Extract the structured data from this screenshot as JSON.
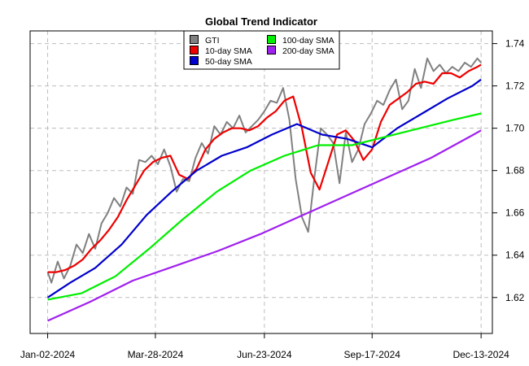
{
  "chart_data": {
    "type": "line",
    "title": "Global Trend Indicator",
    "xlabel": "",
    "ylabel": "",
    "x_ticks": [
      "Jan-02-2024",
      "Mar-28-2024",
      "Jun-23-2024",
      "Sep-17-2024",
      "Dec-13-2024"
    ],
    "y_ticks": [
      "1.62",
      "1.64",
      "1.66",
      "1.68",
      "1.70",
      "1.72",
      "1.74"
    ],
    "ylim": [
      1.603,
      1.746
    ],
    "xlim": [
      "2023-12-19",
      "2024-12-22"
    ],
    "grid": true,
    "legend_position": "top",
    "series": [
      {
        "name": "GTI",
        "color": "#808080",
        "x": [
          "2024-01-02",
          "2024-01-05",
          "2024-01-10",
          "2024-01-15",
          "2024-01-20",
          "2024-01-25",
          "2024-01-30",
          "2024-02-04",
          "2024-02-09",
          "2024-02-14",
          "2024-02-19",
          "2024-02-24",
          "2024-02-29",
          "2024-03-05",
          "2024-03-10",
          "2024-03-15",
          "2024-03-20",
          "2024-03-25",
          "2024-03-30",
          "2024-04-04",
          "2024-04-09",
          "2024-04-14",
          "2024-04-19",
          "2024-04-24",
          "2024-04-29",
          "2024-05-04",
          "2024-05-09",
          "2024-05-14",
          "2024-05-19",
          "2024-05-24",
          "2024-05-29",
          "2024-06-03",
          "2024-06-08",
          "2024-06-13",
          "2024-06-18",
          "2024-06-23",
          "2024-06-28",
          "2024-07-03",
          "2024-07-08",
          "2024-07-13",
          "2024-07-18",
          "2024-07-23",
          "2024-07-28",
          "2024-08-02",
          "2024-08-07",
          "2024-08-12",
          "2024-08-17",
          "2024-08-22",
          "2024-08-27",
          "2024-09-01",
          "2024-09-06",
          "2024-09-11",
          "2024-09-16",
          "2024-09-21",
          "2024-09-26",
          "2024-10-01",
          "2024-10-06",
          "2024-10-11",
          "2024-10-16",
          "2024-10-21",
          "2024-10-26",
          "2024-10-31",
          "2024-11-05",
          "2024-11-10",
          "2024-11-15",
          "2024-11-20",
          "2024-11-25",
          "2024-11-30",
          "2024-12-05",
          "2024-12-10",
          "2024-12-13"
        ],
        "values": [
          1.632,
          1.627,
          1.637,
          1.629,
          1.635,
          1.645,
          1.641,
          1.65,
          1.643,
          1.655,
          1.66,
          1.667,
          1.663,
          1.672,
          1.669,
          1.685,
          1.684,
          1.687,
          1.683,
          1.69,
          1.682,
          1.67,
          1.676,
          1.675,
          1.686,
          1.693,
          1.688,
          1.701,
          1.697,
          1.703,
          1.7,
          1.706,
          1.698,
          1.701,
          1.704,
          1.708,
          1.713,
          1.712,
          1.719,
          1.704,
          1.676,
          1.658,
          1.651,
          1.677,
          1.7,
          1.697,
          1.693,
          1.674,
          1.698,
          1.684,
          1.69,
          1.702,
          1.707,
          1.713,
          1.711,
          1.718,
          1.723,
          1.709,
          1.713,
          1.728,
          1.719,
          1.733,
          1.727,
          1.73,
          1.726,
          1.729,
          1.727,
          1.731,
          1.729,
          1.733,
          1.731
        ]
      },
      {
        "name": "10-day SMA",
        "color": "#ee0000",
        "x": [
          "2024-01-02",
          "2024-01-09",
          "2024-01-16",
          "2024-01-23",
          "2024-01-30",
          "2024-02-06",
          "2024-02-13",
          "2024-02-20",
          "2024-02-27",
          "2024-03-05",
          "2024-03-12",
          "2024-03-19",
          "2024-03-26",
          "2024-04-02",
          "2024-04-09",
          "2024-04-16",
          "2024-04-23",
          "2024-04-30",
          "2024-05-07",
          "2024-05-14",
          "2024-05-21",
          "2024-05-28",
          "2024-06-04",
          "2024-06-11",
          "2024-06-18",
          "2024-06-25",
          "2024-07-02",
          "2024-07-09",
          "2024-07-16",
          "2024-07-23",
          "2024-07-30",
          "2024-08-06",
          "2024-08-13",
          "2024-08-20",
          "2024-08-27",
          "2024-09-03",
          "2024-09-10",
          "2024-09-17",
          "2024-09-24",
          "2024-10-01",
          "2024-10-08",
          "2024-10-15",
          "2024-10-22",
          "2024-10-29",
          "2024-11-05",
          "2024-11-12",
          "2024-11-19",
          "2024-11-26",
          "2024-12-03",
          "2024-12-10",
          "2024-12-13"
        ],
        "values": [
          1.632,
          1.632,
          1.633,
          1.635,
          1.638,
          1.643,
          1.647,
          1.652,
          1.658,
          1.666,
          1.673,
          1.68,
          1.684,
          1.686,
          1.687,
          1.678,
          1.676,
          1.681,
          1.69,
          1.695,
          1.698,
          1.7,
          1.7,
          1.699,
          1.701,
          1.705,
          1.708,
          1.713,
          1.715,
          1.7,
          1.679,
          1.671,
          1.684,
          1.697,
          1.699,
          1.694,
          1.685,
          1.69,
          1.703,
          1.711,
          1.714,
          1.717,
          1.721,
          1.722,
          1.721,
          1.726,
          1.726,
          1.724,
          1.727,
          1.729,
          1.73
        ]
      },
      {
        "name": "50-day SMA",
        "color": "#0000cc",
        "x": [
          "2024-01-02",
          "2024-01-20",
          "2024-02-09",
          "2024-03-01",
          "2024-03-21",
          "2024-04-10",
          "2024-04-30",
          "2024-05-20",
          "2024-06-09",
          "2024-06-29",
          "2024-07-19",
          "2024-08-08",
          "2024-08-28",
          "2024-09-17",
          "2024-10-07",
          "2024-10-27",
          "2024-11-16",
          "2024-12-06",
          "2024-12-13"
        ],
        "values": [
          1.62,
          1.627,
          1.634,
          1.645,
          1.659,
          1.67,
          1.68,
          1.687,
          1.691,
          1.697,
          1.702,
          1.697,
          1.695,
          1.691,
          1.7,
          1.707,
          1.714,
          1.72,
          1.723
        ]
      },
      {
        "name": "100-day SMA",
        "color": "#00ee00",
        "x": [
          "2024-01-02",
          "2024-01-29",
          "2024-02-25",
          "2024-03-23",
          "2024-04-19",
          "2024-05-16",
          "2024-06-12",
          "2024-07-09",
          "2024-08-05",
          "2024-09-01",
          "2024-09-28",
          "2024-10-25",
          "2024-11-21",
          "2024-12-13"
        ],
        "values": [
          1.619,
          1.622,
          1.63,
          1.643,
          1.657,
          1.67,
          1.68,
          1.687,
          1.692,
          1.692,
          1.696,
          1.7,
          1.704,
          1.707
        ]
      },
      {
        "name": "200-day SMA",
        "color": "#a020f0",
        "x": [
          "2024-01-02",
          "2024-02-05",
          "2024-03-10",
          "2024-04-13",
          "2024-05-17",
          "2024-06-20",
          "2024-07-24",
          "2024-08-27",
          "2024-09-30",
          "2024-11-03",
          "2024-12-07",
          "2024-12-13"
        ],
        "values": [
          1.609,
          1.618,
          1.628,
          1.635,
          1.642,
          1.65,
          1.659,
          1.668,
          1.677,
          1.686,
          1.697,
          1.699
        ]
      }
    ]
  }
}
